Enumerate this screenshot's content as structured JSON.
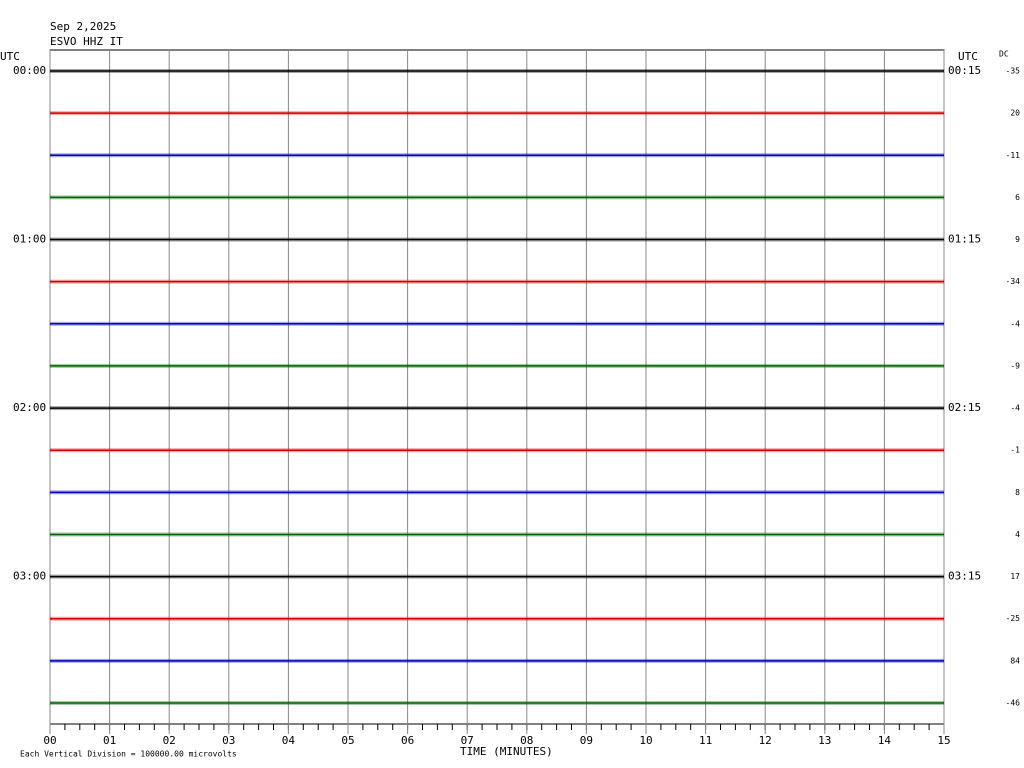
{
  "header": {
    "date": "Sep 2,2025",
    "station": "ESVO HHZ IT"
  },
  "utc_left": "UTC",
  "utc_right": "UTC",
  "dc_label": "DC",
  "rows": [
    {
      "left_label": "00:00",
      "right_label": "00:15",
      "dc": -35,
      "color": "#000000"
    },
    {
      "dc": 20,
      "color": "#d40000"
    },
    {
      "dc": -11,
      "color": "#0000c0"
    },
    {
      "dc": 6,
      "color": "#006400"
    },
    {
      "left_label": "01:00",
      "right_label": "01:15",
      "dc": 9,
      "color": "#000000"
    },
    {
      "dc": -34,
      "color": "#d40000"
    },
    {
      "dc": -4,
      "color": "#0000c0"
    },
    {
      "dc": -9,
      "color": "#006400"
    },
    {
      "left_label": "02:00",
      "right_label": "02:15",
      "dc": -4,
      "color": "#000000"
    },
    {
      "dc": -1,
      "color": "#d40000"
    },
    {
      "dc": 8,
      "color": "#0000c0"
    },
    {
      "dc": 4,
      "color": "#006400"
    },
    {
      "left_label": "03:00",
      "right_label": "03:15",
      "dc": 17,
      "color": "#000000"
    },
    {
      "dc": -25,
      "color": "#d40000"
    },
    {
      "dc": 84,
      "color": "#0000c0"
    },
    {
      "dc": -46,
      "color": "#006400"
    }
  ],
  "xaxis": {
    "title": "TIME (MINUTES)",
    "xlim": [
      0,
      15
    ],
    "ticks": [
      {
        "value": 0,
        "label": "00"
      },
      {
        "value": 1,
        "label": "01"
      },
      {
        "value": 2,
        "label": "02"
      },
      {
        "value": 3,
        "label": "03"
      },
      {
        "value": 4,
        "label": "04"
      },
      {
        "value": 5,
        "label": "05"
      },
      {
        "value": 6,
        "label": "06"
      },
      {
        "value": 7,
        "label": "07"
      },
      {
        "value": 8,
        "label": "08"
      },
      {
        "value": 9,
        "label": "09"
      },
      {
        "value": 10,
        "label": "10"
      },
      {
        "value": 11,
        "label": "11"
      },
      {
        "value": 12,
        "label": "12"
      },
      {
        "value": 13,
        "label": "13"
      },
      {
        "value": 14,
        "label": "14"
      },
      {
        "value": 15,
        "label": "15"
      }
    ]
  },
  "footer": "Each Vertical Division = 100000.00 microvolts"
}
